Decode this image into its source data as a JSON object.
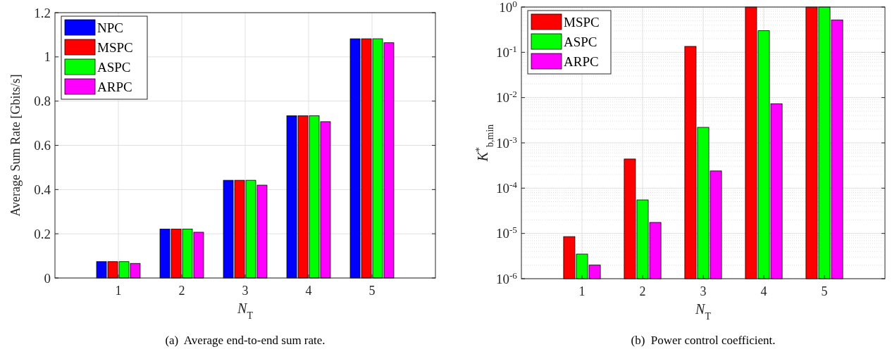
{
  "chart_data": [
    {
      "type": "bar",
      "title": "(a)  Average end-to-end sum rate.",
      "xlabel": "N$_{T}$",
      "ylabel": "Average Sum Rate [Gbits/s]",
      "x": [
        1,
        2,
        3,
        4,
        5
      ],
      "xlim": [
        0,
        6
      ],
      "xticks": [
        1,
        2,
        3,
        4,
        5
      ],
      "ylim": [
        0,
        1.2
      ],
      "yticks": [
        0,
        0.2,
        0.4,
        0.6,
        0.8,
        1,
        1.2
      ],
      "grid": true,
      "legend": "top left",
      "series": [
        {
          "name": "NPC",
          "color": "#0000ff",
          "values": [
            0.074,
            0.221,
            0.442,
            0.734,
            1.082
          ]
        },
        {
          "name": "MSPC",
          "color": "#ff0000",
          "values": [
            0.074,
            0.221,
            0.442,
            0.734,
            1.082
          ]
        },
        {
          "name": "ASPC",
          "color": "#00ff00",
          "values": [
            0.074,
            0.221,
            0.442,
            0.734,
            1.082
          ]
        },
        {
          "name": "ARPC",
          "color": "#ff00ff",
          "values": [
            0.066,
            0.207,
            0.42,
            0.707,
            1.064
          ]
        }
      ]
    },
    {
      "type": "bar",
      "title": "(b)  Power control coefficient.",
      "xlabel": "N$_{T}$",
      "ylabel": "K$^{*}$$_{b,min}$",
      "x": [
        1,
        2,
        3,
        4,
        5
      ],
      "xlim": [
        0,
        6
      ],
      "xticks": [
        1,
        2,
        3,
        4,
        5
      ],
      "log": "y",
      "ylim": [
        1e-06,
        1
      ],
      "yticks": [
        {
          "value": 1e-06,
          "label": "10$^{-6}$"
        },
        {
          "value": 1e-05,
          "label": "10$^{-5}$"
        },
        {
          "value": 0.0001,
          "label": "10$^{-4}$"
        },
        {
          "value": 0.001,
          "label": "10$^{-3}$"
        },
        {
          "value": 0.01,
          "label": "10$^{-2}$"
        },
        {
          "value": 0.1,
          "label": "10$^{-1}$"
        },
        {
          "value": 1,
          "label": "10$^{0}$"
        }
      ],
      "grid": true,
      "legend": "top left",
      "series": [
        {
          "name": "MSPC",
          "color": "#ff0000",
          "values": [
            8.5e-06,
            0.00044,
            0.135,
            1,
            1
          ]
        },
        {
          "name": "ASPC",
          "color": "#00ff00",
          "values": [
            3.5e-06,
            5.5e-05,
            0.0022,
            0.3,
            1
          ]
        },
        {
          "name": "ARPC",
          "color": "#ff00ff",
          "values": [
            2e-06,
            1.75e-05,
            0.00024,
            0.0073,
            0.52
          ]
        }
      ]
    }
  ]
}
